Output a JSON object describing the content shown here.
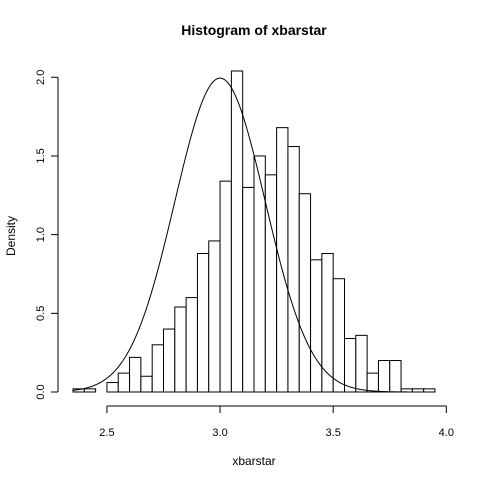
{
  "chart_data": {
    "type": "bar",
    "title": "Histogram of xbarstar",
    "xlabel": "xbarstar",
    "ylabel": "Density",
    "bin_width": 0.05,
    "bin_start": 2.35,
    "densities": [
      0.02,
      0.02,
      0,
      0.06,
      0.12,
      0.22,
      0.1,
      0.3,
      0.4,
      0.54,
      0.6,
      0.88,
      0.96,
      1.34,
      2.04,
      1.3,
      1.5,
      1.38,
      1.68,
      1.56,
      1.26,
      0.84,
      0.88,
      0.72,
      0.34,
      0.36,
      0.12,
      0.2,
      0.2,
      0.02,
      0.02,
      0.02
    ],
    "curve": {
      "type": "normal-density",
      "mean": 3.0,
      "sd": 0.2
    },
    "xlim": [
      2.35,
      3.95
    ],
    "ylim": [
      0,
      2.04
    ],
    "x_ticks": [
      "2.5",
      "3.0",
      "3.5",
      "4.0"
    ],
    "y_ticks": [
      "0.0",
      "0.5",
      "1.0",
      "1.5",
      "2.0"
    ]
  }
}
